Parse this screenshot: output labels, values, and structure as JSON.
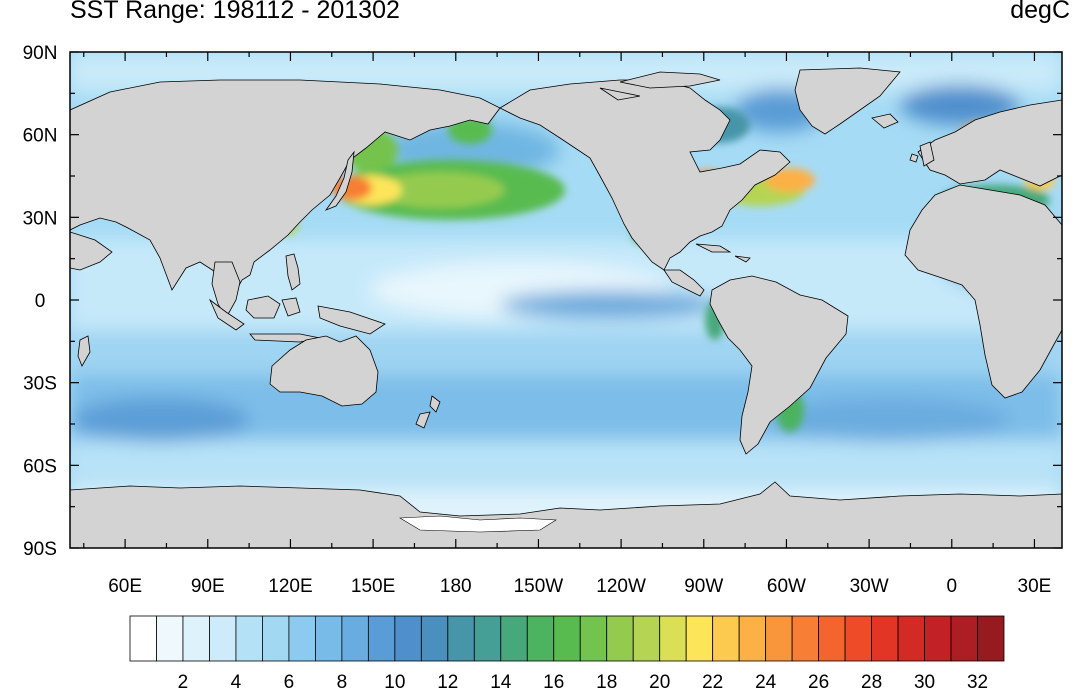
{
  "title": "SST Range: 198112 - 201302",
  "units": "degC",
  "map": {
    "projection": "cylindrical-equidistant",
    "lon_range": [
      40,
      400
    ],
    "lat_range": [
      -90,
      90
    ],
    "land_color": "#d3d3d3",
    "lat_ticks": [
      {
        "label": "90N",
        "lat": 90
      },
      {
        "label": "60N",
        "lat": 60
      },
      {
        "label": "30N",
        "lat": 30
      },
      {
        "label": "0",
        "lat": 0
      },
      {
        "label": "30S",
        "lat": -30
      },
      {
        "label": "60S",
        "lat": -60
      },
      {
        "label": "90S",
        "lat": -90
      }
    ],
    "lon_ticks": [
      {
        "label": "60E",
        "lon": 60
      },
      {
        "label": "90E",
        "lon": 90
      },
      {
        "label": "120E",
        "lon": 120
      },
      {
        "label": "150E",
        "lon": 150
      },
      {
        "label": "180",
        "lon": 180
      },
      {
        "label": "150W",
        "lon": 210
      },
      {
        "label": "120W",
        "lon": 240
      },
      {
        "label": "90W",
        "lon": 270
      },
      {
        "label": "60W",
        "lon": 300
      },
      {
        "label": "30W",
        "lon": 330
      },
      {
        "label": "0",
        "lon": 360
      },
      {
        "label": "30E",
        "lon": 390
      }
    ]
  },
  "colorbar": {
    "levels": [
      2,
      4,
      6,
      8,
      10,
      12,
      14,
      16,
      18,
      20,
      22,
      24,
      26,
      28,
      30,
      32
    ],
    "colors": [
      "#ffffff",
      "#eef8fd",
      "#def2fb",
      "#cdebfa",
      "#b5e1f7",
      "#a3d8f3",
      "#8ccaf0",
      "#79bbe8",
      "#69acdf",
      "#5a9cd6",
      "#4f8fcc",
      "#4a8fbd",
      "#4795a8",
      "#459f96",
      "#47a97b",
      "#4cb361",
      "#58bb4f",
      "#74c34e",
      "#94cb4f",
      "#b6d453",
      "#dbdf55",
      "#fde55a",
      "#fdca50",
      "#fcb046",
      "#f9963c",
      "#f77e35",
      "#f4652d",
      "#ee4b29",
      "#e33526",
      "#d42a26",
      "#c22226",
      "#ad1d24",
      "#961a1f"
    ]
  }
}
